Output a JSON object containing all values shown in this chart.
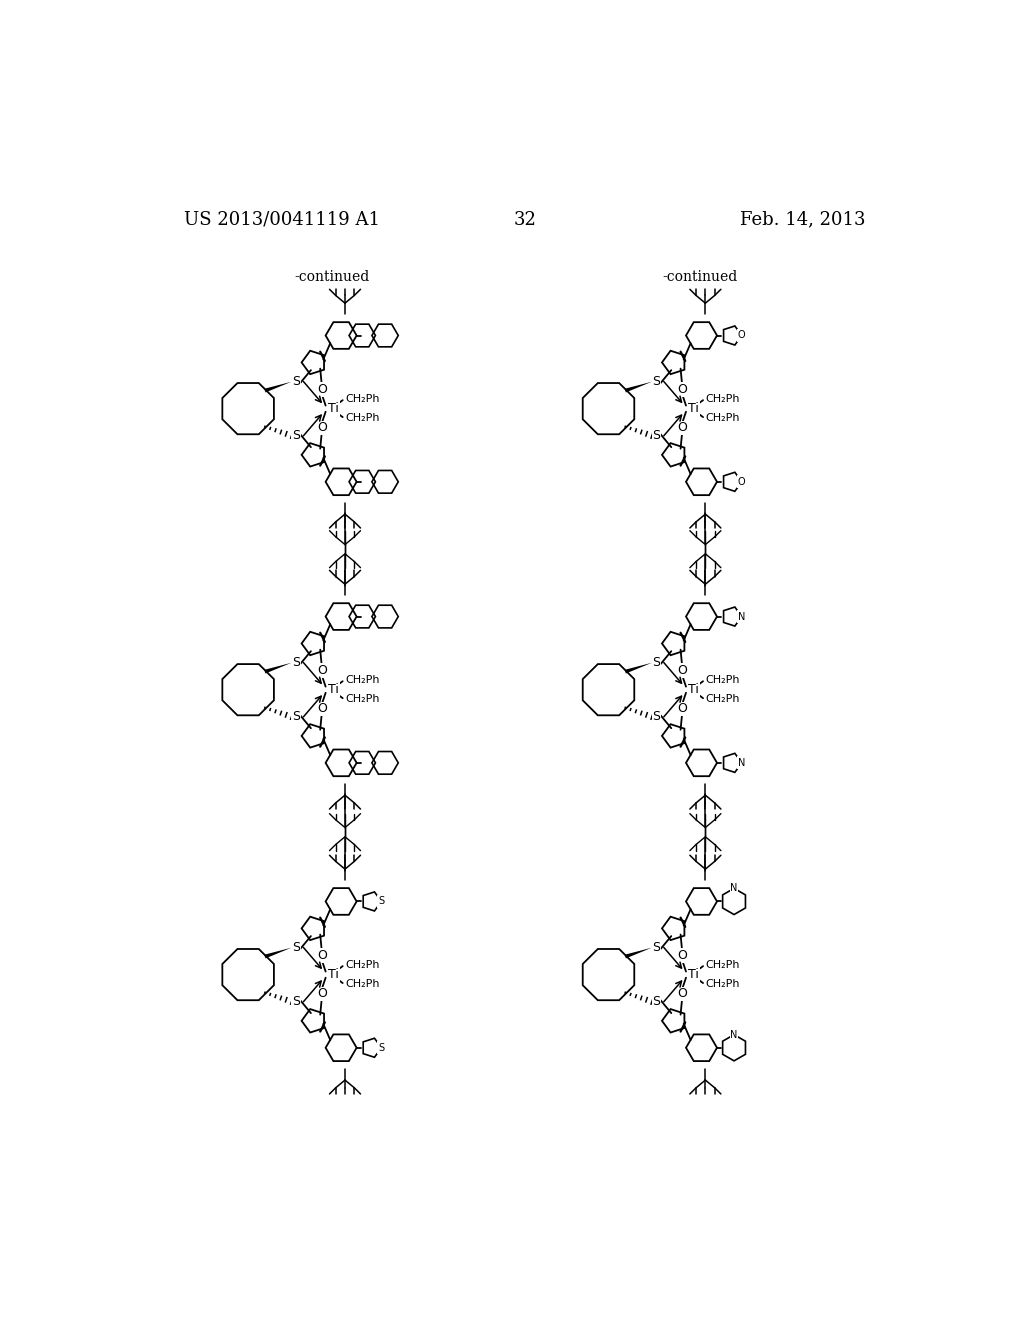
{
  "background_color": "#ffffff",
  "header_left": "US 2013/0041119 A1",
  "header_right": "Feb. 14, 2013",
  "page_number": "32",
  "continued_label": "-continued",
  "header_fontsize": 13,
  "page_num_fontsize": 13,
  "continued_fontsize": 10,
  "figure_width": 10.24,
  "figure_height": 13.2,
  "dpi": 100
}
